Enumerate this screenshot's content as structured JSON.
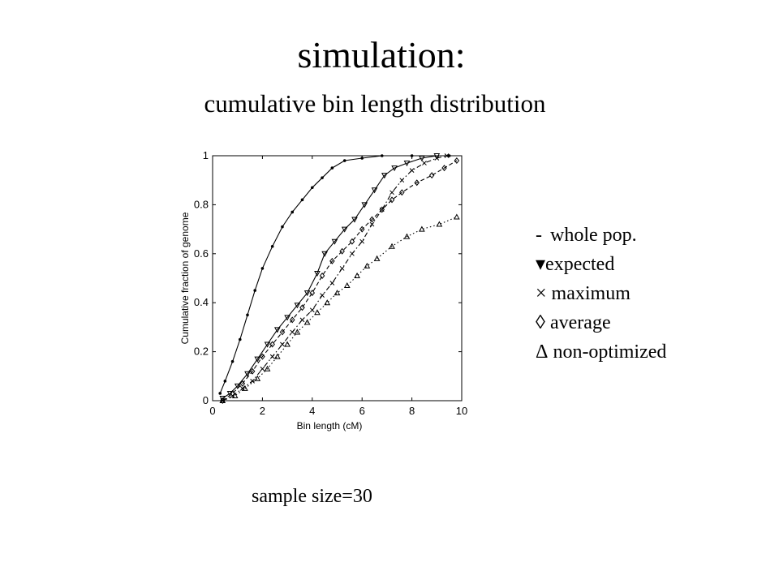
{
  "slide": {
    "title": "simulation:",
    "subtitle": "cumulative bin length distribution",
    "caption": "sample size=30"
  },
  "legend": [
    {
      "symbol": "-",
      "label": "whole pop."
    },
    {
      "symbol": "▾",
      "label": "expected"
    },
    {
      "symbol": "×",
      "label": "maximum"
    },
    {
      "symbol": "◊",
      "label": "average"
    },
    {
      "symbol": "Δ",
      "label": "non-optimized"
    }
  ],
  "chart_data": {
    "type": "line",
    "title": "",
    "xlabel": "Bin length (cM)",
    "ylabel": "Cumulative fraction of genome",
    "xlim": [
      0,
      10
    ],
    "ylim": [
      0,
      1
    ],
    "xticks": [
      "0",
      "2",
      "4",
      "6",
      "8",
      "10"
    ],
    "yticks": [
      "0",
      "0.2",
      "0.4",
      "0.6",
      "0.8",
      "1"
    ],
    "grid": false,
    "colors": {
      "line": "#000000",
      "axis": "#000000"
    },
    "series": [
      {
        "name": "whole pop.",
        "marker": "dot",
        "style": "solid",
        "points": [
          [
            0.3,
            0.03
          ],
          [
            0.5,
            0.08
          ],
          [
            0.8,
            0.16
          ],
          [
            1.1,
            0.25
          ],
          [
            1.4,
            0.35
          ],
          [
            1.7,
            0.45
          ],
          [
            2.0,
            0.54
          ],
          [
            2.4,
            0.63
          ],
          [
            2.8,
            0.71
          ],
          [
            3.2,
            0.77
          ],
          [
            3.6,
            0.82
          ],
          [
            4.0,
            0.87
          ],
          [
            4.4,
            0.91
          ],
          [
            4.8,
            0.95
          ],
          [
            5.3,
            0.98
          ],
          [
            6.0,
            0.99
          ],
          [
            6.8,
            1.0
          ],
          [
            8.0,
            1.0
          ],
          [
            9.5,
            1.0
          ]
        ]
      },
      {
        "name": "expected",
        "marker": "triangle-down",
        "style": "solid",
        "points": [
          [
            0.4,
            0.01
          ],
          [
            0.7,
            0.03
          ],
          [
            1.0,
            0.06
          ],
          [
            1.4,
            0.11
          ],
          [
            1.8,
            0.17
          ],
          [
            2.2,
            0.23
          ],
          [
            2.6,
            0.29
          ],
          [
            3.0,
            0.34
          ],
          [
            3.4,
            0.39
          ],
          [
            3.8,
            0.44
          ],
          [
            4.2,
            0.52
          ],
          [
            4.5,
            0.6
          ],
          [
            4.9,
            0.65
          ],
          [
            5.3,
            0.7
          ],
          [
            5.7,
            0.74
          ],
          [
            6.1,
            0.8
          ],
          [
            6.5,
            0.86
          ],
          [
            6.9,
            0.92
          ],
          [
            7.3,
            0.95
          ],
          [
            7.8,
            0.97
          ],
          [
            8.4,
            0.99
          ],
          [
            9.0,
            1.0
          ]
        ]
      },
      {
        "name": "maximum",
        "marker": "cross",
        "style": "dashdot",
        "points": [
          [
            0.4,
            0.0
          ],
          [
            0.8,
            0.02
          ],
          [
            1.2,
            0.05
          ],
          [
            1.6,
            0.08
          ],
          [
            2.0,
            0.13
          ],
          [
            2.4,
            0.18
          ],
          [
            2.8,
            0.23
          ],
          [
            3.2,
            0.28
          ],
          [
            3.6,
            0.33
          ],
          [
            4.0,
            0.37
          ],
          [
            4.4,
            0.43
          ],
          [
            4.8,
            0.48
          ],
          [
            5.2,
            0.54
          ],
          [
            5.6,
            0.6
          ],
          [
            6.0,
            0.65
          ],
          [
            6.4,
            0.72
          ],
          [
            6.8,
            0.78
          ],
          [
            7.2,
            0.85
          ],
          [
            7.6,
            0.9
          ],
          [
            8.0,
            0.94
          ],
          [
            8.5,
            0.97
          ],
          [
            9.0,
            0.99
          ],
          [
            9.4,
            1.0
          ]
        ]
      },
      {
        "name": "average",
        "marker": "diamond",
        "style": "dashed",
        "points": [
          [
            0.4,
            0.0
          ],
          [
            0.8,
            0.03
          ],
          [
            1.2,
            0.07
          ],
          [
            1.6,
            0.12
          ],
          [
            2.0,
            0.18
          ],
          [
            2.4,
            0.23
          ],
          [
            2.8,
            0.28
          ],
          [
            3.2,
            0.33
          ],
          [
            3.6,
            0.38
          ],
          [
            4.0,
            0.44
          ],
          [
            4.4,
            0.51
          ],
          [
            4.8,
            0.57
          ],
          [
            5.2,
            0.61
          ],
          [
            5.6,
            0.65
          ],
          [
            6.0,
            0.7
          ],
          [
            6.4,
            0.74
          ],
          [
            6.8,
            0.78
          ],
          [
            7.2,
            0.82
          ],
          [
            7.6,
            0.85
          ],
          [
            8.2,
            0.89
          ],
          [
            8.8,
            0.92
          ],
          [
            9.3,
            0.95
          ],
          [
            9.8,
            0.98
          ]
        ]
      },
      {
        "name": "non-optimized",
        "marker": "triangle-up",
        "style": "dotted",
        "points": [
          [
            0.4,
            0.0
          ],
          [
            0.9,
            0.02
          ],
          [
            1.3,
            0.05
          ],
          [
            1.8,
            0.09
          ],
          [
            2.2,
            0.13
          ],
          [
            2.6,
            0.18
          ],
          [
            3.0,
            0.23
          ],
          [
            3.4,
            0.28
          ],
          [
            3.8,
            0.32
          ],
          [
            4.2,
            0.36
          ],
          [
            4.6,
            0.4
          ],
          [
            5.0,
            0.44
          ],
          [
            5.4,
            0.47
          ],
          [
            5.8,
            0.51
          ],
          [
            6.2,
            0.55
          ],
          [
            6.6,
            0.58
          ],
          [
            7.2,
            0.63
          ],
          [
            7.8,
            0.67
          ],
          [
            8.4,
            0.7
          ],
          [
            9.1,
            0.72
          ],
          [
            9.8,
            0.75
          ]
        ]
      }
    ]
  }
}
